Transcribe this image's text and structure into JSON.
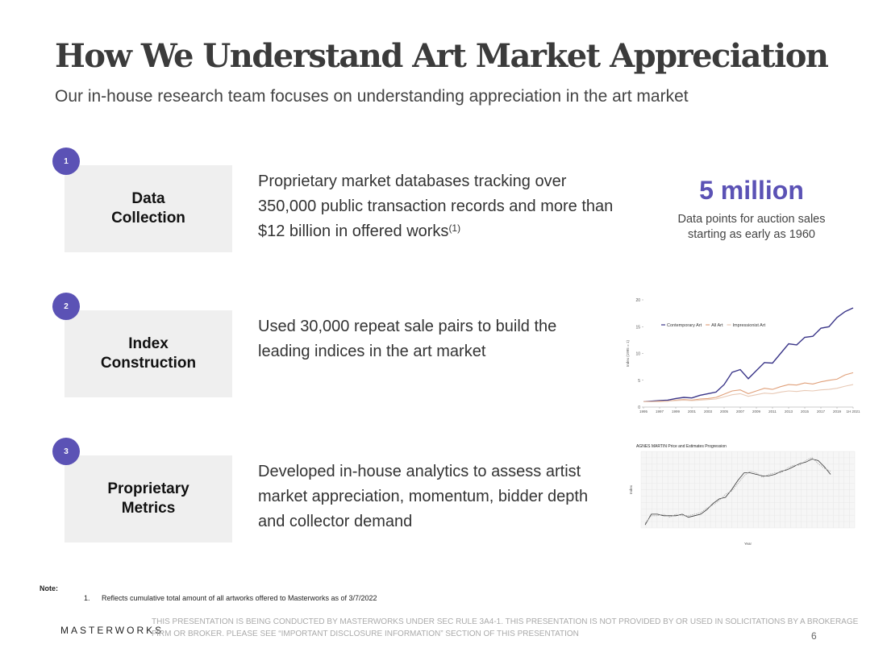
{
  "header": {
    "title": "How We Understand Art Market Appreciation",
    "subtitle": "Our in-house research team focuses on understanding appreciation in the art market"
  },
  "items": [
    {
      "number": "1",
      "label_lines": [
        "Data",
        "Collection"
      ],
      "description_lines": [
        "Proprietary market databases tracking over",
        "350,000 public transaction records and more than",
        "$12 billion in offered works"
      ],
      "footnote_marker": "(1)"
    },
    {
      "number": "2",
      "label_lines": [
        "Index",
        "Construction"
      ],
      "description_lines": [
        "Used 30,000 repeat sale pairs to build the",
        "leading indices in the art market"
      ]
    },
    {
      "number": "3",
      "label_lines": [
        "Proprietary",
        "Metrics"
      ],
      "description_lines": [
        "Developed in-house analytics to assess artist",
        "market appreciation, momentum, bidder depth",
        "and collector demand"
      ]
    }
  ],
  "stat": {
    "value": "5 million",
    "caption_lines": [
      "Data points for auction sales",
      "starting as early as 1960"
    ]
  },
  "chart_data": [
    {
      "type": "line",
      "y_label": "Index (1995 = 1)",
      "x": [
        1995,
        1996,
        1997,
        1998,
        1999,
        2000,
        2001,
        2002,
        2003,
        2004,
        2005,
        2006,
        2007,
        2008,
        2009,
        2010,
        2011,
        2012,
        2013,
        2014,
        2015,
        2016,
        2017,
        2018,
        2019,
        2020,
        2021
      ],
      "xlim": [
        1995,
        2021
      ],
      "xticks": [
        1995,
        1997,
        1999,
        2001,
        2003,
        2005,
        2007,
        2009,
        2011,
        2013,
        2015,
        2017,
        2019,
        {
          "value": 2021,
          "label": "1H 2021"
        }
      ],
      "ylim": [
        0,
        20
      ],
      "yticks": [
        0,
        5,
        10,
        15,
        20
      ],
      "series": [
        {
          "name": "Contemporary Art",
          "color": "#3a3588",
          "values": [
            1,
            1.1,
            1.2,
            1.3,
            1.6,
            1.8,
            1.7,
            2.2,
            2.5,
            2.8,
            4.2,
            6.5,
            7,
            5.3,
            6.8,
            8.3,
            8.2,
            10,
            11.8,
            11.6,
            13,
            13.2,
            14.7,
            15,
            16.7,
            17.8,
            18.5
          ]
        },
        {
          "name": "All Art",
          "color": "#e0a07a",
          "values": [
            1,
            1,
            1.1,
            1.1,
            1.3,
            1.4,
            1.3,
            1.5,
            1.6,
            1.8,
            2.4,
            3,
            3.2,
            2.5,
            3,
            3.5,
            3.3,
            3.8,
            4.2,
            4.1,
            4.5,
            4.3,
            4.7,
            5,
            5.2,
            6,
            6.4
          ]
        },
        {
          "name": "Impressionist Art",
          "color": "#e8c9b5",
          "values": [
            1,
            1,
            1,
            1.1,
            1.2,
            1.3,
            1.2,
            1.3,
            1.4,
            1.5,
            1.9,
            2.3,
            2.5,
            2,
            2.3,
            2.6,
            2.5,
            2.8,
            3,
            2.9,
            3.1,
            3,
            3.2,
            3.3,
            3.5,
            3.9,
            4.2
          ]
        }
      ]
    },
    {
      "type": "line",
      "title": "AGNES MARTIN Price and Estimates Progression",
      "x_label": "Year",
      "y_label": "Index",
      "ylim": [
        1,
        6
      ],
      "series": [
        {
          "color": "#333333",
          "values": [
            1.2,
            1.9,
            1.9,
            1.8,
            1.8,
            1.8,
            1.9,
            1.7,
            1.8,
            1.9,
            2.2,
            2.6,
            2.9,
            3.0,
            3.5,
            4.1,
            4.6,
            4.6,
            4.5,
            4.4,
            4.4,
            4.5,
            4.7,
            4.8,
            5.0,
            5.2,
            5.3,
            5.5,
            5.4,
            5.0,
            4.5
          ]
        },
        {
          "color": "#aaaaaa",
          "values": [
            1.3,
            1.8,
            1.8,
            1.9,
            1.7,
            1.9,
            1.8,
            1.8,
            1.9,
            2.0,
            2.3,
            2.5,
            2.8,
            3.2,
            3.4,
            3.9,
            4.4,
            4.7,
            4.6,
            4.3,
            4.5,
            4.6,
            4.6,
            4.9,
            5.1,
            5.1,
            5.4,
            5.6,
            5.2,
            4.9,
            4.7
          ]
        }
      ]
    }
  ],
  "note": {
    "label": "Note:",
    "items": [
      {
        "number": "1.",
        "text": "Reflects cumulative total amount of all artworks offered to Masterworks as of 3/7/2022"
      }
    ]
  },
  "footer": {
    "logo": "MASTERWORKS",
    "disclaimer_lines": [
      "THIS PRESENTATION  IS BEING CONDUCTED BY MASTERWORKS UNDER SEC RULE 3A4-1. THIS PRESENTATION  IS NOT PROVIDED BY OR USED IN SOLICITATIONS BY A BROKERAGE",
      "FIRM OR BROKER. PLEASE SEE “IMPORTANT DISCLOSURE INFORMATION” SECTION OF THIS PRESENTATION"
    ],
    "page": "6"
  }
}
